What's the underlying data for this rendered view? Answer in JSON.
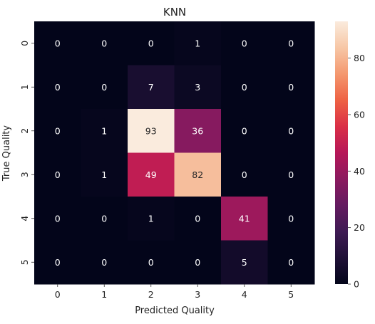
{
  "chart_data": {
    "type": "heatmap",
    "title": "KNN",
    "xlabel": "Predicted Quality",
    "ylabel": "True Quality",
    "x_categories": [
      "0",
      "1",
      "2",
      "3",
      "4",
      "5"
    ],
    "y_categories": [
      "0",
      "1",
      "2",
      "3",
      "4",
      "5"
    ],
    "values": [
      [
        0,
        0,
        0,
        1,
        0,
        0
      ],
      [
        0,
        0,
        7,
        3,
        0,
        0
      ],
      [
        0,
        1,
        93,
        36,
        0,
        0
      ],
      [
        0,
        1,
        49,
        82,
        0,
        0
      ],
      [
        0,
        0,
        1,
        0,
        41,
        0
      ],
      [
        0,
        0,
        0,
        0,
        5,
        0
      ]
    ],
    "colorbar": {
      "range": [
        0,
        93
      ],
      "ticks": [
        0,
        20,
        40,
        60,
        80
      ],
      "colormap": "rocket"
    },
    "grid": false,
    "legend": "colorbar-right"
  }
}
